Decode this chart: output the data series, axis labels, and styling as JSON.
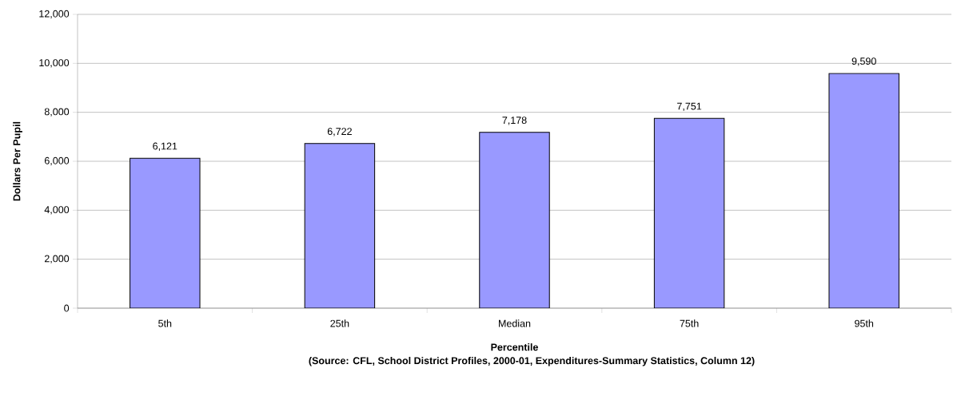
{
  "chart_data": {
    "type": "bar",
    "xlabel": "Percentile",
    "ylabel": "Dollars Per Pupil",
    "categories": [
      "5th",
      "25th",
      "Median",
      "75th",
      "95th"
    ],
    "values": [
      6121,
      6722,
      7178,
      7751,
      9590
    ],
    "value_labels": [
      "6,121",
      "6,722",
      "7,178",
      "7,751",
      "9,590"
    ],
    "color": "#9999ff",
    "ylim": [
      0,
      12000
    ],
    "yticks": [
      0,
      {
        "value": 2000,
        "label": "2,000"
      },
      {
        "value": 4000,
        "label": "4,000"
      },
      {
        "value": 6000,
        "label": "6,000"
      },
      {
        "value": 8000,
        "label": "8,000"
      },
      {
        "value": 10000,
        "label": "10,000"
      },
      {
        "value": 12000,
        "label": "12,000"
      }
    ],
    "grid": "y",
    "annotations": [
      "(Source:   CFL, School District Profiles, 2000-01, Expenditures-Summary Statistics, Column 12)"
    ]
  }
}
